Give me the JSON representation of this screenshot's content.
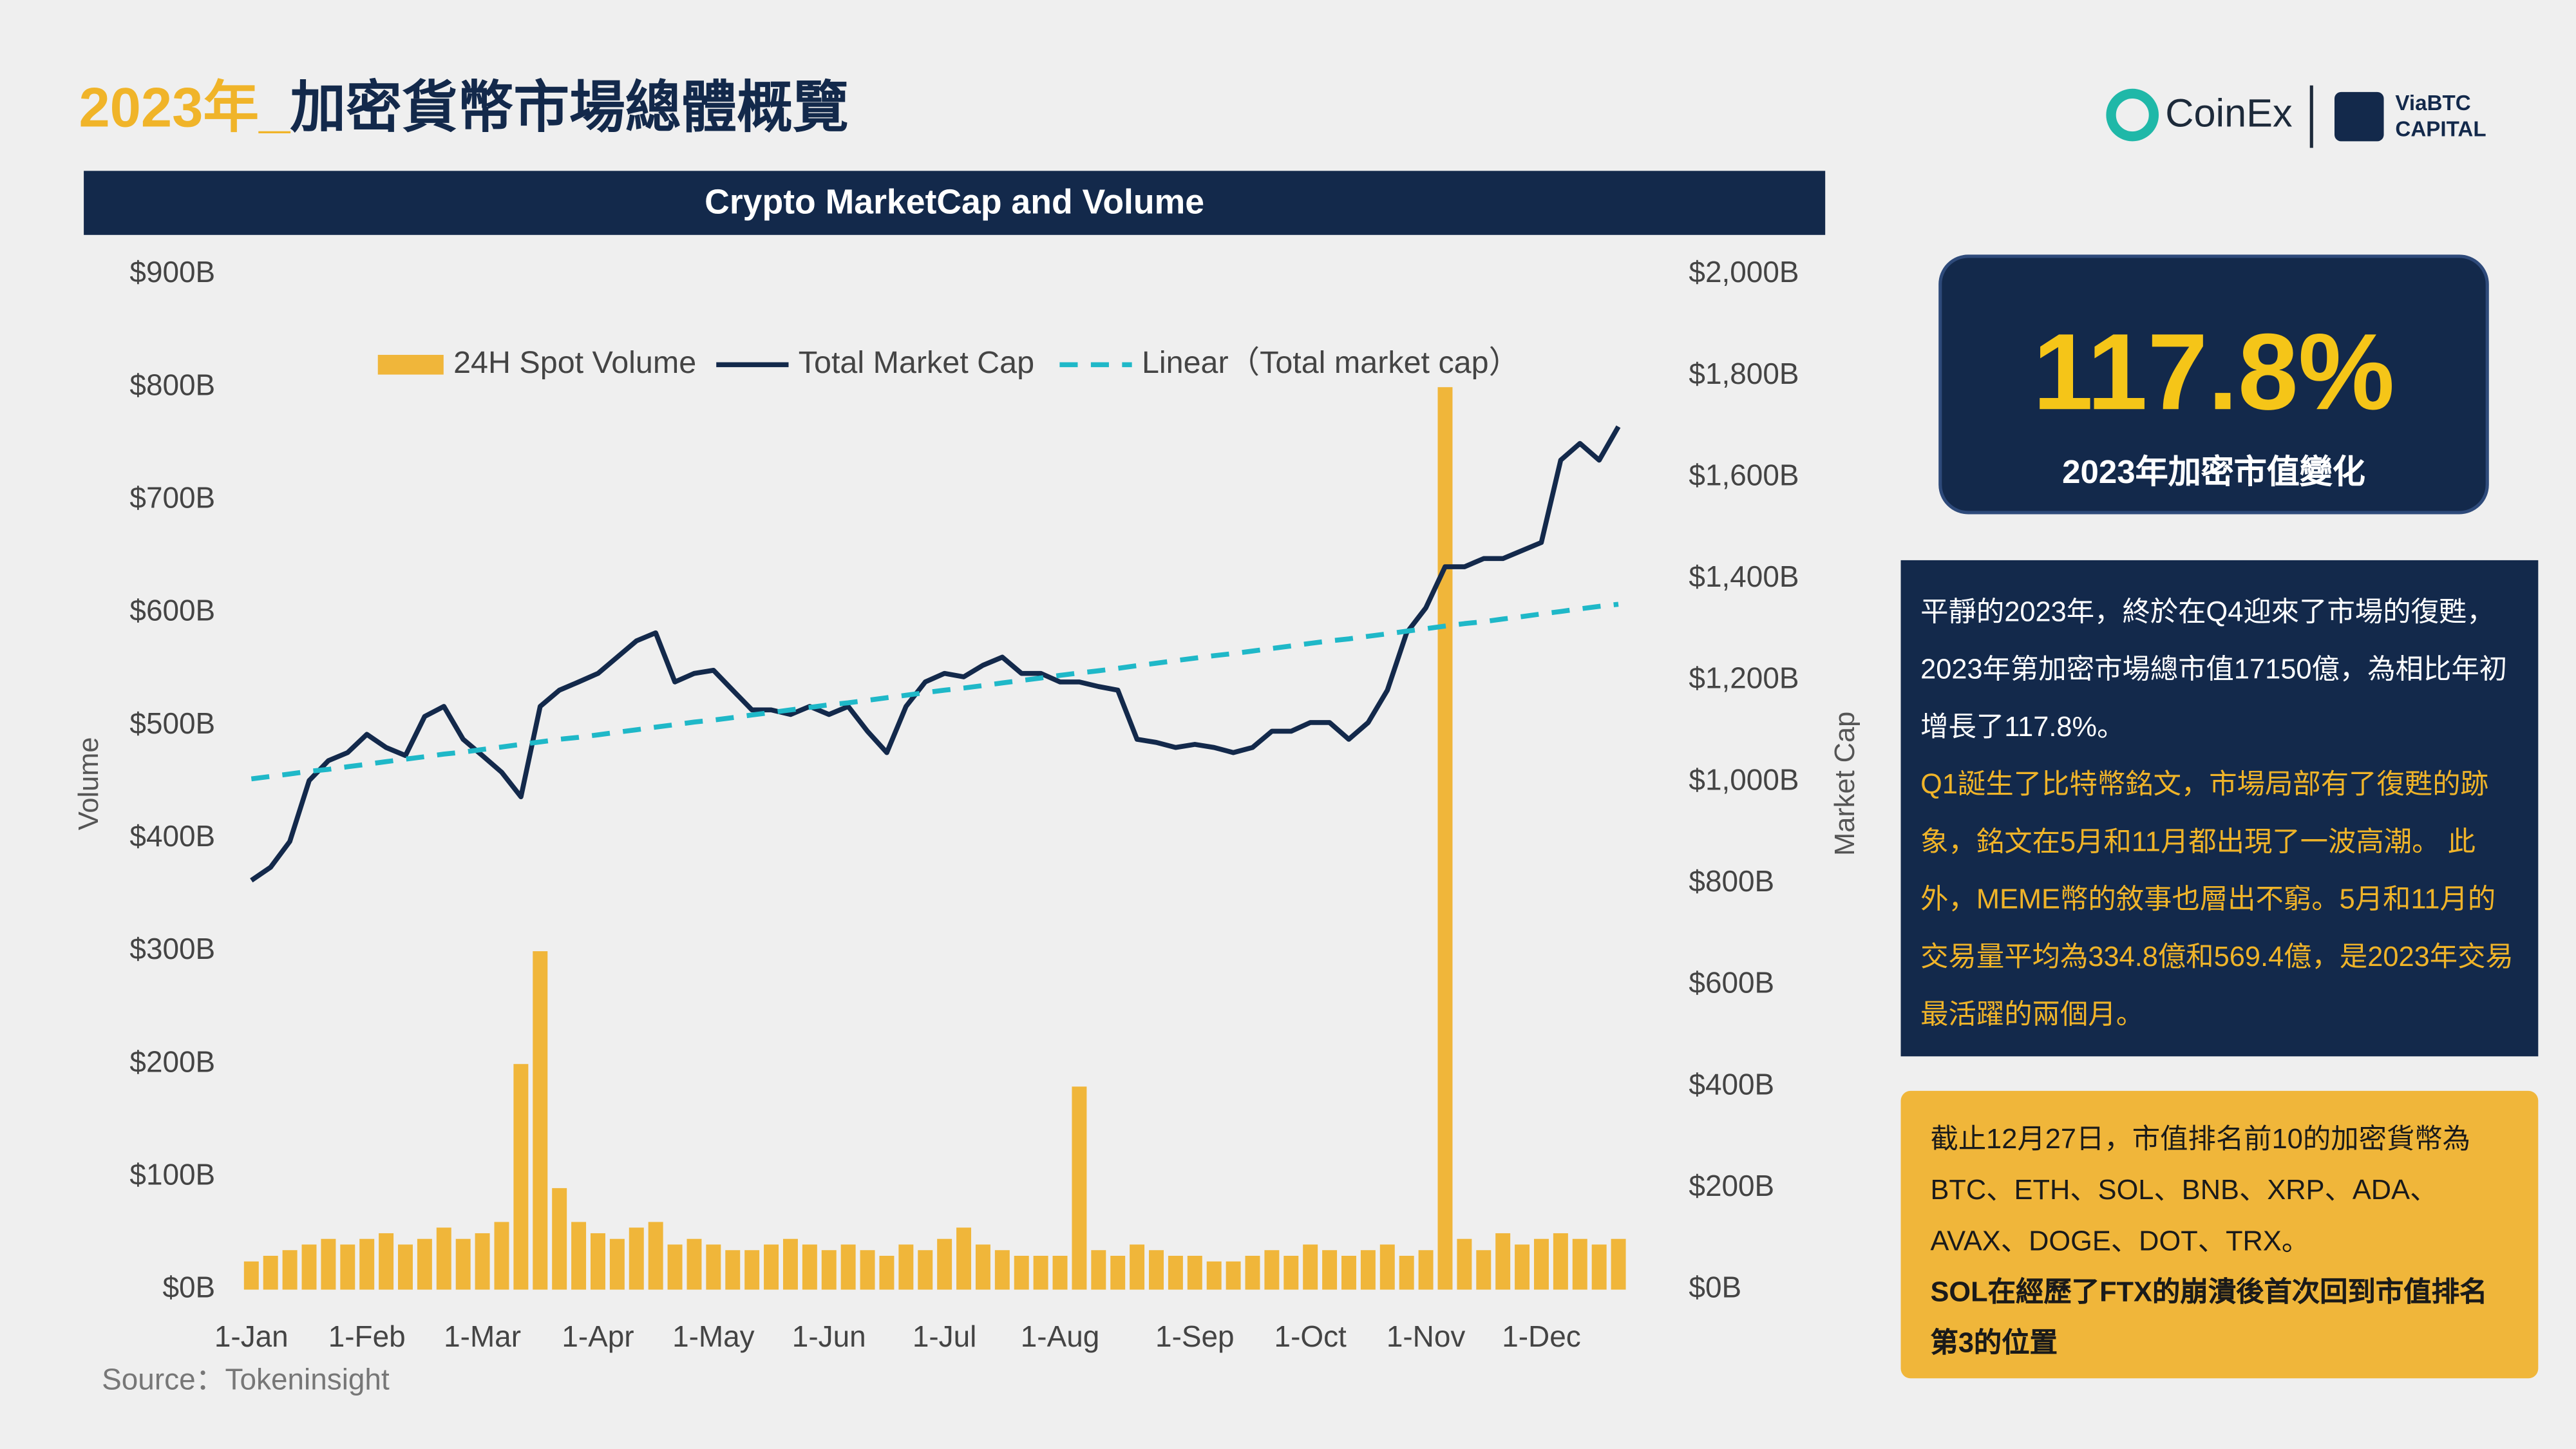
{
  "title": [
    "2023年_",
    "加密貨幣市場總體概覽"
  ],
  "logos": {
    "coinex": "CoinEx",
    "viabtc": [
      "ViaBTC",
      "CAPITAL"
    ]
  },
  "summary": {
    "value": "117.8%",
    "label": "2023年加密市值變化"
  },
  "note1": [
    "平靜的2023年，終於在Q4迎來了市場的復甦，2023年第加密市場總市值17150億，為相比年初增長了117.8%。",
    "Q1誕生了比特幣銘文，市場局部有了復甦的跡象，銘文在5月和11月都出現了一波高潮。 此外，MEME幣的敘事也層出不窮。5月和11月的交易量平均為334.8億和569.4億，是2023年交易最活躍的兩個月。"
  ],
  "note2": [
    "截止12月27日，市值排名前10的加密貨幣為BTC、ETH、SOL、BNB、XRP、ADA、AVAX、DOGE、DOT、TRX。",
    "SOL在經歷了FTX的崩潰後首次回到市值排名第3的位置"
  ],
  "chart_data": {
    "type": "bar-line",
    "title": "Crypto MarketCap and Volume",
    "source": "Source：Tokeninsight",
    "y_label": "Volume",
    "y2_label": "Market Cap",
    "grid": false,
    "legend": "top",
    "categories": [
      "1-Jan",
      null,
      null,
      null,
      null,
      null,
      "1-Feb",
      null,
      null,
      null,
      null,
      null,
      "1-Mar",
      null,
      null,
      null,
      null,
      null,
      "1-Apr",
      null,
      null,
      null,
      null,
      null,
      "1-May",
      null,
      null,
      null,
      null,
      null,
      "1-Jun",
      null,
      null,
      null,
      null,
      null,
      "1-Jul",
      null,
      null,
      null,
      null,
      null,
      "1-Aug",
      null,
      null,
      null,
      null,
      null,
      null,
      "1-Sep",
      null,
      null,
      null,
      null,
      null,
      "1-Oct",
      null,
      null,
      null,
      null,
      null,
      "1-Nov",
      null,
      null,
      null,
      null,
      null,
      "1-Dec",
      null,
      null,
      null,
      null
    ],
    "ylim": [
      0,
      900
    ],
    "yticks": [
      {
        "value": 0,
        "label": "$0B"
      },
      {
        "value": 100,
        "label": "$100B"
      },
      {
        "value": 200,
        "label": "$200B"
      },
      {
        "value": 300,
        "label": "$300B"
      },
      {
        "value": 400,
        "label": "$400B"
      },
      {
        "value": 500,
        "label": "$500B"
      },
      {
        "value": 600,
        "label": "$600B"
      },
      {
        "value": 700,
        "label": "$700B"
      },
      {
        "value": 800,
        "label": "$800B"
      },
      {
        "value": 900,
        "label": "$900B"
      }
    ],
    "y2lim": [
      0,
      2000
    ],
    "y2ticks": [
      {
        "value": 0,
        "label": "$0B"
      },
      {
        "value": 200,
        "label": "$200B"
      },
      {
        "value": 400,
        "label": "$400B"
      },
      {
        "value": 600,
        "label": "$600B"
      },
      {
        "value": 800,
        "label": "$800B"
      },
      {
        "value": 1000,
        "label": "$1,000B"
      },
      {
        "value": 1200,
        "label": "$1,200B"
      },
      {
        "value": 1400,
        "label": "$1,400B"
      },
      {
        "value": 1600,
        "label": "$1,600B"
      },
      {
        "value": 1800,
        "label": "$1,800B"
      },
      {
        "value": 2000,
        "label": "$2,000B"
      }
    ],
    "series": [
      {
        "name": "24H Spot Volume",
        "type": "bar",
        "color": "#f0b63a",
        "axis": "y",
        "values": [
          25,
          30,
          35,
          40,
          45,
          40,
          45,
          50,
          40,
          45,
          55,
          45,
          50,
          60,
          200,
          300,
          90,
          60,
          50,
          45,
          55,
          60,
          40,
          45,
          40,
          35,
          35,
          40,
          45,
          40,
          35,
          40,
          35,
          30,
          40,
          35,
          45,
          55,
          40,
          35,
          30,
          30,
          30,
          180,
          35,
          30,
          40,
          35,
          30,
          30,
          25,
          25,
          30,
          35,
          30,
          40,
          35,
          30,
          35,
          40,
          30,
          35,
          800,
          45,
          35,
          50,
          40,
          45,
          50,
          45,
          40,
          45
        ]
      },
      {
        "name": "Total Market Cap",
        "type": "line",
        "color": "#13294b",
        "axis": "y2",
        "values": [
          806,
          832,
          883,
          1003,
          1042,
          1058,
          1094,
          1068,
          1052,
          1129,
          1149,
          1084,
          1052,
          1019,
          971,
          1149,
          1181,
          1197,
          1214,
          1246,
          1278,
          1294,
          1197,
          1214,
          1220,
          1181,
          1142,
          1142,
          1133,
          1149,
          1133,
          1149,
          1100,
          1058,
          1149,
          1197,
          1214,
          1207,
          1230,
          1246,
          1214,
          1214,
          1197,
          1197,
          1188,
          1181,
          1084,
          1078,
          1068,
          1074,
          1068,
          1058,
          1068,
          1100,
          1100,
          1117,
          1117,
          1084,
          1117,
          1181,
          1294,
          1343,
          1424,
          1424,
          1440,
          1440,
          1456,
          1472,
          1634,
          1667,
          1634,
          1700
        ]
      },
      {
        "name": "Linear（Total market cap）",
        "type": "line",
        "dashed": true,
        "color": "#1fb8c8",
        "axis": "y2",
        "values": [
          1006,
          1011,
          1016,
          1021,
          1025,
          1030,
          1035,
          1040,
          1045,
          1050,
          1055,
          1059,
          1064,
          1069,
          1074,
          1079,
          1084,
          1088,
          1093,
          1098,
          1103,
          1108,
          1113,
          1118,
          1122,
          1127,
          1132,
          1137,
          1142,
          1147,
          1152,
          1156,
          1161,
          1166,
          1171,
          1176,
          1181,
          1185,
          1190,
          1195,
          1200,
          1205,
          1210,
          1215,
          1219,
          1224,
          1229,
          1234,
          1239,
          1244,
          1249,
          1253,
          1258,
          1263,
          1268,
          1273,
          1278,
          1282,
          1287,
          1292,
          1297,
          1302,
          1307,
          1312,
          1316,
          1321,
          1326,
          1331,
          1336,
          1341,
          1346,
          1350
        ]
      }
    ]
  }
}
